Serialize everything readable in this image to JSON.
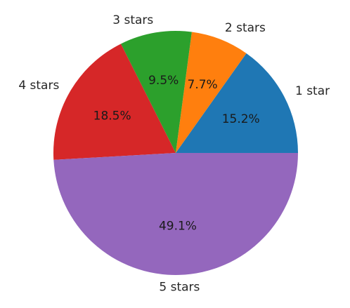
{
  "chart_data": {
    "type": "pie",
    "title": "",
    "start_angle_deg": 0,
    "direction": "counterclockwise",
    "legend": "none",
    "slices": [
      {
        "label": "1 star",
        "value": 15.2,
        "pct_label": "15.2%",
        "color": "#1f77b4"
      },
      {
        "label": "2 stars",
        "value": 7.7,
        "pct_label": "7.7%",
        "color": "#ff7f0e"
      },
      {
        "label": "3 stars",
        "value": 9.5,
        "pct_label": "9.5%",
        "color": "#2ca02c"
      },
      {
        "label": "4 stars",
        "value": 18.5,
        "pct_label": "18.5%",
        "color": "#d62728"
      },
      {
        "label": "5 stars",
        "value": 49.1,
        "pct_label": "49.1%",
        "color": "#9467bd"
      }
    ]
  }
}
